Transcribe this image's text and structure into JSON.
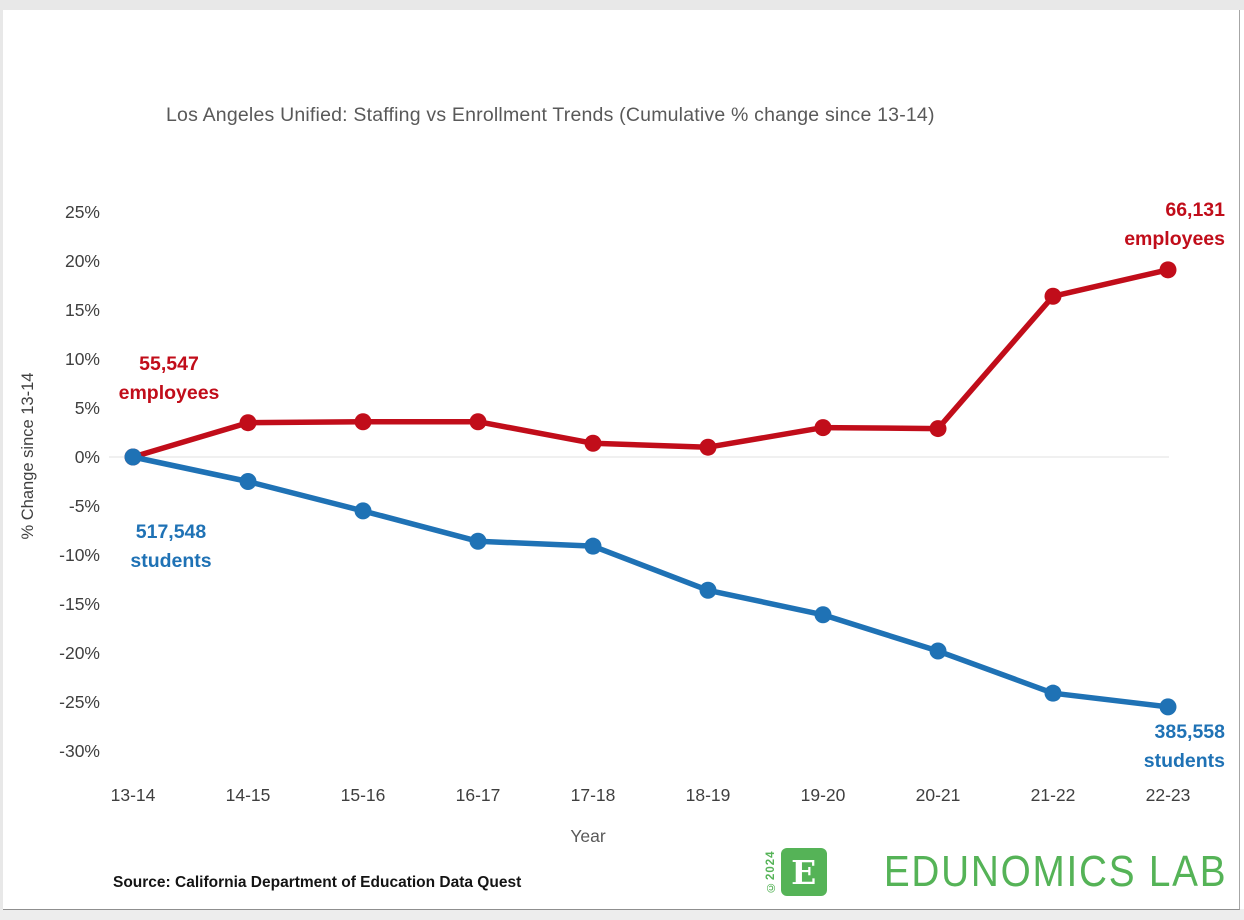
{
  "page": {
    "title": "Los Angeles Unified: Staffing vs Enrollment Trends (Cumulative % change since 13-14)",
    "source_note": "Source: California Department of Education Data Quest"
  },
  "colors": {
    "employees_red": "#C10D1A",
    "students_blue": "#1F72B5",
    "logo_green": "#55B357",
    "title_gray": "#595959",
    "tick_gray": "#3f3f3f",
    "zero_gridline": "#ebebeb"
  },
  "chart_data": {
    "type": "line",
    "title": "Los Angeles Unified: Staffing vs Enrollment Trends (Cumulative % change since 13-14)",
    "xlabel": "Year",
    "ylabel": "% Change since 13-14",
    "categories": [
      "13-14",
      "14-15",
      "15-16",
      "16-17",
      "17-18",
      "18-19",
      "19-20",
      "20-21",
      "21-22",
      "22-23"
    ],
    "series": [
      {
        "name": "Employees",
        "color": "#C10D1A",
        "values_pct": [
          0,
          3.5,
          3.6,
          3.6,
          1.4,
          1.0,
          3.0,
          2.9,
          16.4,
          19.1
        ],
        "start_count": "55,547",
        "end_count": "66,131"
      },
      {
        "name": "Students",
        "color": "#1F72B5",
        "values_pct": [
          0,
          -2.5,
          -5.5,
          -8.6,
          -9.1,
          -13.6,
          -16.1,
          -19.8,
          -24.1,
          -25.5
        ],
        "start_count": "517,548",
        "end_count": "385,558"
      }
    ],
    "ylim": [
      -30,
      25
    ],
    "yticks": [
      25,
      20,
      15,
      10,
      5,
      0,
      -5,
      -10,
      -15,
      -20,
      -25,
      -30
    ],
    "ytick_suffix": "%",
    "grid": "zero-line-only",
    "legend": "none (series labeled directly with counts)"
  },
  "annotations": {
    "employees_start": {
      "value": "55,547",
      "label": "employees"
    },
    "employees_end": {
      "value": "66,131",
      "label": "employees"
    },
    "students_start": {
      "value": "517,548",
      "label": "students"
    },
    "students_end": {
      "value": "385,558",
      "label": "students"
    }
  },
  "axis": {
    "ylabel": "% Change since 13-14",
    "xlabel": "Year"
  },
  "logo": {
    "copyright": "©2024",
    "monogram": "E",
    "wordmark": "EDUNOMICS LAB"
  }
}
